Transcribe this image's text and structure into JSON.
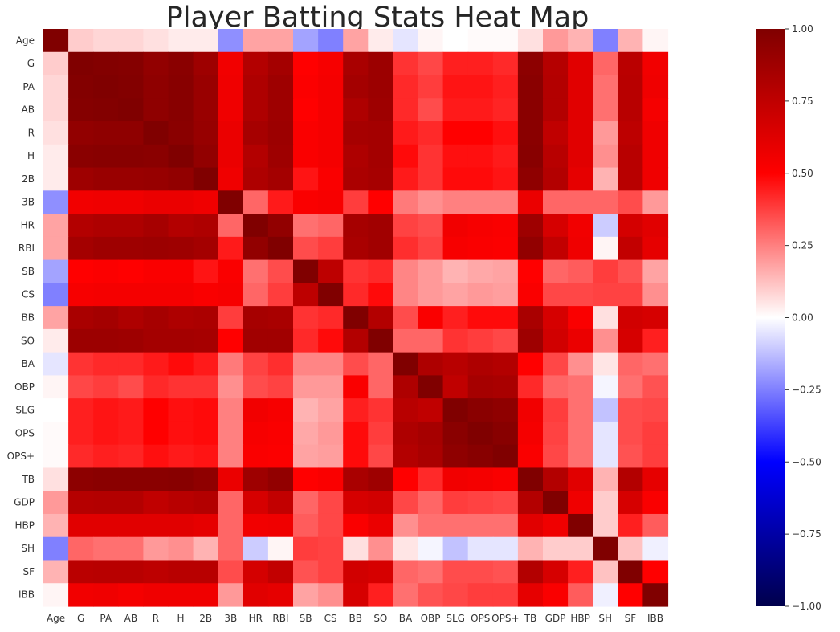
{
  "chart_data": {
    "type": "heatmap",
    "title": "Player Batting Stats Heat Map",
    "xlabel": "",
    "ylabel": "",
    "labels": [
      "Age",
      "G",
      "PA",
      "AB",
      "R",
      "H",
      "2B",
      "3B",
      "HR",
      "RBI",
      "SB",
      "CS",
      "BB",
      "SO",
      "BA",
      "OBP",
      "SLG",
      "OPS",
      "OPS+",
      "TB",
      "GDP",
      "HBP",
      "SH",
      "SF",
      "IBB"
    ],
    "colorbar": {
      "range": [
        -1.0,
        1.0
      ],
      "ticks": [
        "1.00",
        "0.75",
        "0.50",
        "0.25",
        "0.00",
        "−0.25",
        "−0.50",
        "−0.75",
        "−1.00"
      ],
      "tick_values": [
        1.0,
        0.75,
        0.5,
        0.25,
        0.0,
        -0.25,
        -0.5,
        -0.75,
        -1.0
      ],
      "colormap": "seismic"
    },
    "matrix": [
      [
        1.0,
        0.1,
        0.08,
        0.08,
        0.06,
        0.04,
        0.04,
        -0.22,
        0.18,
        0.18,
        -0.18,
        -0.25,
        0.18,
        0.04,
        -0.05,
        0.02,
        0.0,
        0.01,
        0.01,
        0.06,
        0.2,
        0.15,
        -0.25,
        0.15,
        0.02
      ],
      [
        0.1,
        1.0,
        0.99,
        0.98,
        0.93,
        0.96,
        0.88,
        0.55,
        0.8,
        0.86,
        0.5,
        0.53,
        0.84,
        0.89,
        0.4,
        0.36,
        0.44,
        0.44,
        0.42,
        0.95,
        0.79,
        0.62,
        0.3,
        0.77,
        0.55
      ],
      [
        0.08,
        0.99,
        1.0,
        0.99,
        0.94,
        0.97,
        0.9,
        0.56,
        0.82,
        0.88,
        0.51,
        0.54,
        0.86,
        0.89,
        0.42,
        0.38,
        0.46,
        0.46,
        0.44,
        0.96,
        0.8,
        0.62,
        0.28,
        0.78,
        0.56
      ],
      [
        0.08,
        0.98,
        0.99,
        1.0,
        0.94,
        0.97,
        0.9,
        0.56,
        0.82,
        0.88,
        0.5,
        0.54,
        0.82,
        0.88,
        0.42,
        0.35,
        0.45,
        0.45,
        0.43,
        0.96,
        0.8,
        0.62,
        0.28,
        0.78,
        0.54
      ],
      [
        0.06,
        0.93,
        0.94,
        0.94,
        1.0,
        0.96,
        0.91,
        0.58,
        0.85,
        0.89,
        0.52,
        0.54,
        0.85,
        0.86,
        0.45,
        0.42,
        0.5,
        0.5,
        0.47,
        0.96,
        0.75,
        0.62,
        0.2,
        0.76,
        0.56
      ],
      [
        0.04,
        0.96,
        0.97,
        0.97,
        0.96,
        1.0,
        0.93,
        0.58,
        0.8,
        0.88,
        0.52,
        0.54,
        0.82,
        0.86,
        0.48,
        0.4,
        0.47,
        0.47,
        0.45,
        0.97,
        0.78,
        0.62,
        0.22,
        0.78,
        0.56
      ],
      [
        0.04,
        0.88,
        0.9,
        0.9,
        0.91,
        0.93,
        1.0,
        0.56,
        0.82,
        0.86,
        0.46,
        0.52,
        0.83,
        0.85,
        0.45,
        0.4,
        0.48,
        0.48,
        0.46,
        0.94,
        0.8,
        0.6,
        0.15,
        0.78,
        0.56
      ],
      [
        -0.22,
        0.55,
        0.56,
        0.56,
        0.58,
        0.58,
        0.56,
        1.0,
        0.3,
        0.45,
        0.52,
        0.53,
        0.38,
        0.5,
        0.26,
        0.22,
        0.25,
        0.25,
        0.25,
        0.58,
        0.3,
        0.3,
        0.3,
        0.35,
        0.2
      ],
      [
        0.18,
        0.8,
        0.82,
        0.82,
        0.85,
        0.8,
        0.82,
        0.3,
        1.0,
        0.93,
        0.28,
        0.3,
        0.85,
        0.87,
        0.37,
        0.35,
        0.55,
        0.53,
        0.52,
        0.88,
        0.66,
        0.55,
        -0.1,
        0.67,
        0.62
      ],
      [
        0.18,
        0.86,
        0.88,
        0.88,
        0.89,
        0.88,
        0.86,
        0.45,
        0.93,
        1.0,
        0.35,
        0.38,
        0.84,
        0.87,
        0.41,
        0.37,
        0.53,
        0.52,
        0.51,
        0.93,
        0.74,
        0.56,
        0.02,
        0.74,
        0.6
      ],
      [
        -0.18,
        0.5,
        0.51,
        0.5,
        0.52,
        0.52,
        0.46,
        0.52,
        0.28,
        0.35,
        1.0,
        0.76,
        0.4,
        0.42,
        0.24,
        0.2,
        0.15,
        0.17,
        0.18,
        0.5,
        0.3,
        0.32,
        0.38,
        0.34,
        0.18
      ],
      [
        -0.25,
        0.53,
        0.54,
        0.54,
        0.54,
        0.54,
        0.52,
        0.53,
        0.3,
        0.38,
        0.76,
        1.0,
        0.42,
        0.48,
        0.24,
        0.2,
        0.18,
        0.2,
        0.19,
        0.52,
        0.36,
        0.36,
        0.37,
        0.37,
        0.22
      ],
      [
        0.18,
        0.84,
        0.86,
        0.82,
        0.85,
        0.82,
        0.83,
        0.38,
        0.85,
        0.84,
        0.4,
        0.42,
        1.0,
        0.8,
        0.35,
        0.52,
        0.44,
        0.48,
        0.48,
        0.84,
        0.66,
        0.52,
        0.06,
        0.68,
        0.66
      ],
      [
        0.04,
        0.89,
        0.89,
        0.88,
        0.86,
        0.86,
        0.85,
        0.5,
        0.87,
        0.87,
        0.42,
        0.48,
        0.8,
        1.0,
        0.3,
        0.3,
        0.4,
        0.38,
        0.36,
        0.88,
        0.68,
        0.58,
        0.22,
        0.66,
        0.44
      ],
      [
        -0.05,
        0.4,
        0.42,
        0.42,
        0.45,
        0.48,
        0.45,
        0.26,
        0.37,
        0.41,
        0.24,
        0.24,
        0.35,
        0.3,
        1.0,
        0.82,
        0.78,
        0.82,
        0.8,
        0.5,
        0.36,
        0.22,
        0.05,
        0.3,
        0.28
      ],
      [
        0.02,
        0.36,
        0.38,
        0.35,
        0.42,
        0.4,
        0.4,
        0.22,
        0.35,
        0.37,
        0.2,
        0.2,
        0.52,
        0.3,
        0.82,
        1.0,
        0.75,
        0.85,
        0.84,
        0.42,
        0.3,
        0.28,
        -0.02,
        0.28,
        0.34
      ],
      [
        0.0,
        0.44,
        0.46,
        0.45,
        0.5,
        0.47,
        0.48,
        0.25,
        0.55,
        0.53,
        0.15,
        0.18,
        0.44,
        0.4,
        0.78,
        0.75,
        1.0,
        0.96,
        0.94,
        0.55,
        0.38,
        0.28,
        -0.12,
        0.35,
        0.36
      ],
      [
        0.01,
        0.44,
        0.46,
        0.45,
        0.5,
        0.47,
        0.48,
        0.25,
        0.53,
        0.52,
        0.17,
        0.2,
        0.48,
        0.38,
        0.82,
        0.85,
        0.96,
        1.0,
        0.97,
        0.54,
        0.37,
        0.28,
        -0.05,
        0.35,
        0.38
      ],
      [
        0.01,
        0.42,
        0.44,
        0.43,
        0.47,
        0.45,
        0.46,
        0.25,
        0.52,
        0.51,
        0.18,
        0.19,
        0.48,
        0.36,
        0.8,
        0.84,
        0.94,
        0.97,
        1.0,
        0.52,
        0.36,
        0.28,
        -0.05,
        0.34,
        0.38
      ],
      [
        0.06,
        0.95,
        0.96,
        0.96,
        0.96,
        0.97,
        0.94,
        0.58,
        0.88,
        0.93,
        0.5,
        0.52,
        0.84,
        0.88,
        0.5,
        0.42,
        0.55,
        0.54,
        0.52,
        1.0,
        0.8,
        0.62,
        0.15,
        0.8,
        0.6
      ],
      [
        0.2,
        0.79,
        0.8,
        0.8,
        0.75,
        0.78,
        0.8,
        0.3,
        0.66,
        0.74,
        0.3,
        0.36,
        0.66,
        0.68,
        0.36,
        0.3,
        0.38,
        0.37,
        0.36,
        0.8,
        1.0,
        0.56,
        0.1,
        0.66,
        0.52
      ],
      [
        0.15,
        0.62,
        0.62,
        0.62,
        0.62,
        0.62,
        0.6,
        0.3,
        0.55,
        0.56,
        0.32,
        0.36,
        0.52,
        0.58,
        0.22,
        0.28,
        0.28,
        0.28,
        0.28,
        0.62,
        0.56,
        1.0,
        0.1,
        0.44,
        0.32
      ],
      [
        -0.25,
        0.3,
        0.28,
        0.28,
        0.2,
        0.22,
        0.15,
        0.3,
        -0.1,
        0.02,
        0.38,
        0.37,
        0.06,
        0.22,
        0.05,
        -0.02,
        -0.12,
        -0.05,
        -0.05,
        0.15,
        0.1,
        0.1,
        1.0,
        0.12,
        -0.03
      ],
      [
        0.15,
        0.77,
        0.78,
        0.78,
        0.76,
        0.78,
        0.78,
        0.35,
        0.67,
        0.74,
        0.34,
        0.37,
        0.68,
        0.66,
        0.3,
        0.28,
        0.35,
        0.35,
        0.34,
        0.8,
        0.66,
        0.44,
        0.12,
        1.0,
        0.5
      ],
      [
        0.02,
        0.55,
        0.56,
        0.54,
        0.56,
        0.56,
        0.56,
        0.2,
        0.62,
        0.6,
        0.18,
        0.22,
        0.66,
        0.44,
        0.28,
        0.34,
        0.36,
        0.38,
        0.38,
        0.6,
        0.52,
        0.32,
        -0.03,
        0.5,
        1.0
      ]
    ]
  }
}
